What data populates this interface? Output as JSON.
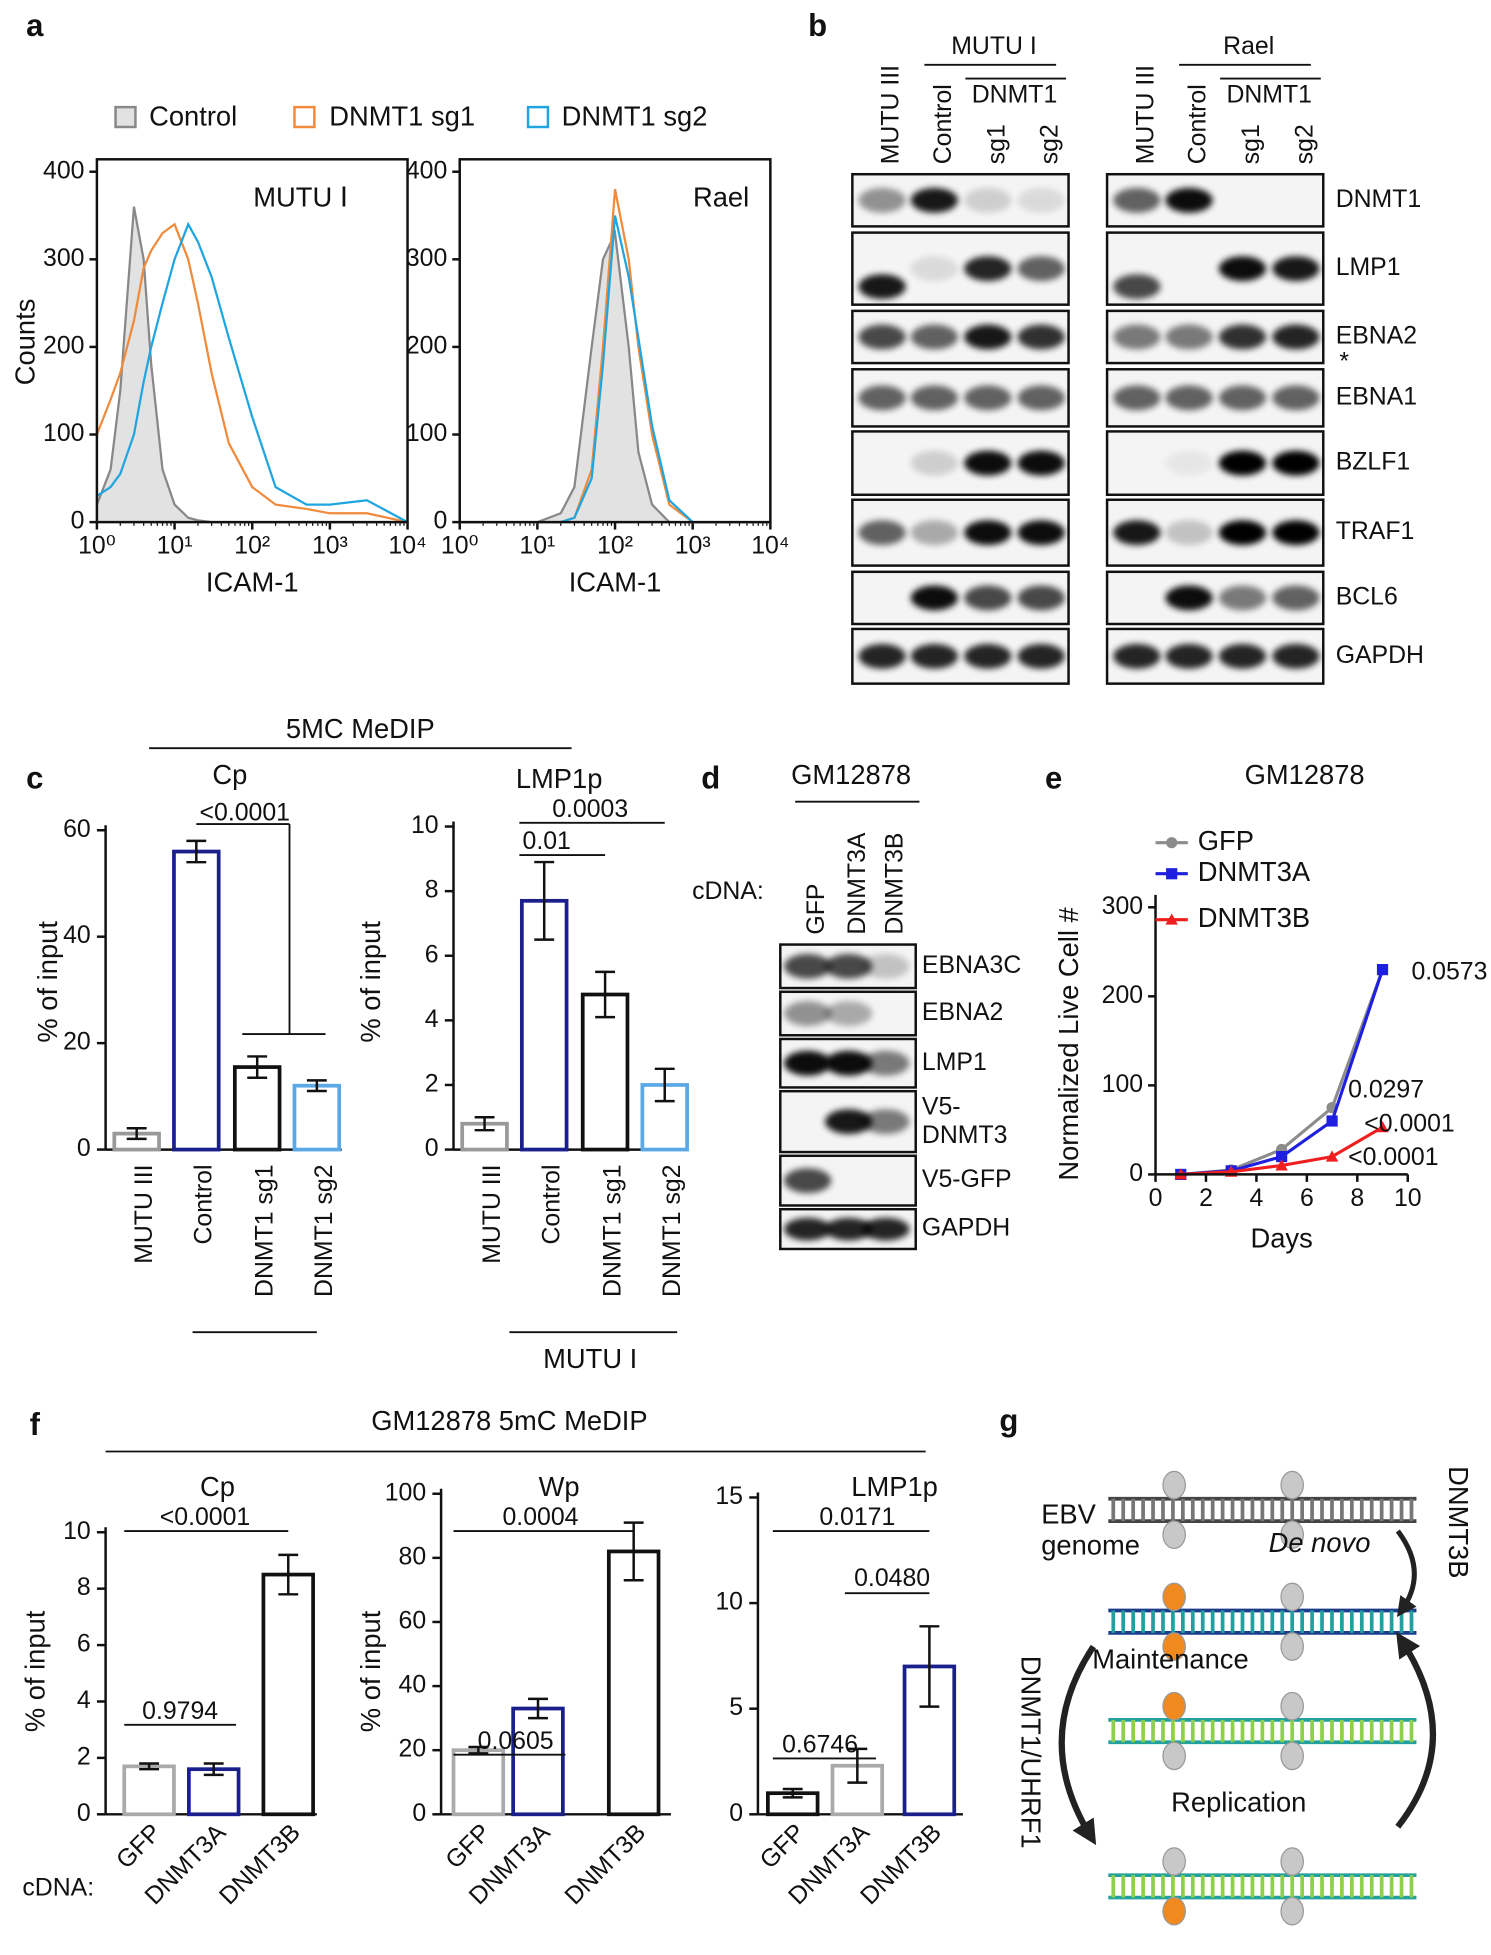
{
  "panel_labels": [
    "a",
    "b",
    "c",
    "d",
    "e",
    "f",
    "g"
  ],
  "group_labels": {
    "c_top": "5MC MeDIP",
    "c_bottom": "MUTU I",
    "f_top": "GM12878 5mC MeDIP",
    "f_cdna": "cDNA:"
  },
  "legend_a": [
    "Control",
    "DNMT1 sg1",
    "DNMT1 sg2"
  ],
  "chart_data": [
    {
      "type": "line",
      "x_scale": "log",
      "annotation": "MUTU Ⅰ",
      "y_label": "Counts",
      "x_label": "ICAM-1",
      "x": [
        1,
        1.5,
        2,
        3,
        4,
        5,
        7,
        10,
        15,
        20,
        30,
        50,
        100,
        200,
        500,
        1000,
        3000,
        10000
      ],
      "series": [
        {
          "name": "Control",
          "color": "#888888",
          "fill": "#e2e2e2",
          "values": [
            20,
            60,
            150,
            360,
            300,
            180,
            60,
            20,
            5,
            2,
            0,
            0,
            0,
            0,
            0,
            0,
            0,
            0
          ]
        },
        {
          "name": "DNMT1 sg1",
          "color": "#f08a3c",
          "values": [
            100,
            140,
            170,
            230,
            290,
            310,
            330,
            340,
            300,
            250,
            170,
            90,
            40,
            20,
            15,
            10,
            10,
            0
          ]
        },
        {
          "name": "DNMT1 sg2",
          "color": "#1fa5e0",
          "values": [
            30,
            40,
            55,
            100,
            160,
            200,
            250,
            300,
            340,
            320,
            280,
            210,
            120,
            40,
            20,
            20,
            25,
            0
          ]
        }
      ],
      "xlim": [
        1,
        10000
      ],
      "xticks": [
        {
          "value": 1,
          "label": "10⁰"
        },
        {
          "value": 10,
          "label": "10¹"
        },
        {
          "value": 100,
          "label": "10²"
        },
        {
          "value": 1000,
          "label": "10³"
        },
        {
          "value": 10000,
          "label": "10⁴"
        }
      ],
      "ylim": [
        0,
        400
      ],
      "yticks": [
        0,
        100,
        200,
        300,
        400
      ]
    },
    {
      "type": "line",
      "x_scale": "log",
      "annotation": "Rael",
      "x_label": "ICAM-1",
      "x": [
        1,
        10,
        20,
        30,
        50,
        70,
        100,
        150,
        200,
        300,
        500,
        1000,
        10000
      ],
      "series": [
        {
          "color": "#888888",
          "fill": "#e2e2e2",
          "values": [
            0,
            0,
            10,
            40,
            200,
            300,
            330,
            200,
            80,
            20,
            0,
            0,
            0
          ]
        },
        {
          "color": "#f08a3c",
          "values": [
            0,
            0,
            0,
            5,
            60,
            200,
            380,
            300,
            200,
            100,
            20,
            0,
            0
          ]
        },
        {
          "color": "#1fa5e0",
          "values": [
            0,
            0,
            0,
            5,
            50,
            180,
            350,
            280,
            210,
            110,
            25,
            0,
            0
          ]
        }
      ],
      "xlim": [
        1,
        10000
      ],
      "xticks": [
        {
          "value": 1,
          "label": "10⁰"
        },
        {
          "value": 10,
          "label": "10¹"
        },
        {
          "value": 100,
          "label": "10²"
        },
        {
          "value": 1000,
          "label": "10³"
        },
        {
          "value": 10000,
          "label": "10⁴"
        }
      ],
      "ylim": [
        0,
        400
      ],
      "yticks": [
        0,
        100,
        200,
        300,
        400
      ]
    },
    {
      "type": "bar",
      "title": "Cp",
      "y_label": "% of input",
      "categories": [
        "MUTU III",
        "Control",
        "DNMT1 sg1",
        "DNMT1 sg2"
      ],
      "values": [
        3,
        56,
        15.5,
        12
      ],
      "errors": [
        1,
        2,
        2,
        1
      ],
      "colors": [
        "#999999",
        "#1a1f8c",
        "#111111",
        "#5aa9e6"
      ],
      "ylim": [
        0,
        60
      ],
      "yticks": [
        0,
        20,
        40,
        60
      ],
      "annotations": [
        "<0.0001"
      ]
    },
    {
      "type": "bar",
      "title": "LMP1p",
      "y_label": "% of input",
      "categories": [
        "MUTU III",
        "Control",
        "DNMT1 sg1",
        "DNMT1 sg2"
      ],
      "values": [
        0.8,
        7.7,
        4.8,
        2.0
      ],
      "errors": [
        0.2,
        1.2,
        0.7,
        0.5
      ],
      "colors": [
        "#999999",
        "#1a1f8c",
        "#111111",
        "#5aa9e6"
      ],
      "ylim": [
        0,
        10
      ],
      "yticks": [
        0,
        2,
        4,
        6,
        8,
        10
      ],
      "annotations": [
        "0.0003",
        "0.01"
      ]
    },
    {
      "type": "line",
      "title": "GM12878",
      "y_label": "Normalized Live Cell #",
      "x_label": "Days",
      "x": [
        1,
        3,
        5,
        7,
        9
      ],
      "series": [
        {
          "name": "GFP",
          "color": "#8c8c8c",
          "marker": "circle",
          "values": [
            0,
            5,
            28,
            75,
            230
          ]
        },
        {
          "name": "DNMT3A",
          "color": "#1f1fe0",
          "marker": "square",
          "values": [
            0,
            4,
            20,
            60,
            230
          ]
        },
        {
          "name": "DNMT3B",
          "color": "#f01e1e",
          "marker": "triangle",
          "values": [
            0,
            3,
            10,
            20,
            53
          ]
        }
      ],
      "xlim": [
        0,
        10
      ],
      "xticks": [
        0,
        2,
        4,
        6,
        8,
        10
      ],
      "ylim": [
        0,
        300
      ],
      "yticks": [
        0,
        100,
        200,
        300
      ],
      "annotations": [
        "0.0573",
        "0.0297",
        "<0.0001",
        "<0.0001"
      ]
    },
    {
      "type": "bar",
      "title": "Cp",
      "y_label": "% of input",
      "categories": [
        "GFP",
        "DNMT3A",
        "DNMT3B"
      ],
      "values": [
        1.7,
        1.6,
        8.5
      ],
      "errors": [
        0.1,
        0.2,
        0.7
      ],
      "colors": [
        "#aaaaaa",
        "#1a1f8c",
        "#111111"
      ],
      "ylim": [
        0,
        10
      ],
      "yticks": [
        0,
        2,
        4,
        6,
        8,
        10
      ],
      "annotations": [
        "<0.0001",
        "0.9794"
      ]
    },
    {
      "type": "bar",
      "title": "Wp",
      "y_label": "% of input",
      "categories": [
        "GFP",
        "DNMT3A",
        "DNMT3B"
      ],
      "values": [
        20,
        33,
        82
      ],
      "errors": [
        1,
        3,
        9
      ],
      "colors": [
        "#aaaaaa",
        "#1a1f8c",
        "#111111"
      ],
      "ylim": [
        0,
        100
      ],
      "yticks": [
        0,
        20,
        40,
        60,
        80,
        100
      ],
      "annotations": [
        "0.0004",
        "0.0605"
      ]
    },
    {
      "type": "bar",
      "title": "LMP1p",
      "categories": [
        "GFP",
        "DNMT3A",
        "DNMT3B"
      ],
      "values": [
        1.0,
        2.3,
        7.0
      ],
      "errors": [
        0.2,
        0.8,
        1.9
      ],
      "colors": [
        "#111111",
        "#aaaaaa",
        "#1a1f8c"
      ],
      "ylim": [
        0,
        15
      ],
      "yticks": [
        0,
        5,
        10,
        15
      ],
      "annotations": [
        "0.0171",
        "0.0480",
        "0.6746"
      ]
    }
  ],
  "blot_b": {
    "groups": [
      "MUTU I",
      "Rael"
    ],
    "sub_group": "DNMT1",
    "lanes": [
      "MUTU III",
      "Control",
      "sg1",
      "sg2"
    ],
    "proteins": [
      "DNMT1",
      "LMP1",
      "EBNA2",
      "EBNA1",
      "BZLF1",
      "TRAF1",
      "BCL6",
      "GAPDH"
    ],
    "asterisk": "*"
  },
  "blot_d": {
    "title": "GM12878",
    "cdna": "cDNA:",
    "lanes": [
      "GFP",
      "DNMT3A",
      "DNMT3B"
    ],
    "proteins": [
      "EBNA3C",
      "EBNA2",
      "LMP1",
      [
        "V5-",
        "DNMT3"
      ],
      "V5-GFP",
      "GAPDH"
    ]
  },
  "diagram_g": {
    "labels": [
      "EBV",
      "genome",
      "De novo",
      "DNMT3B",
      "Maintenance",
      "Replication",
      "DNMT1/UHRF1"
    ]
  }
}
